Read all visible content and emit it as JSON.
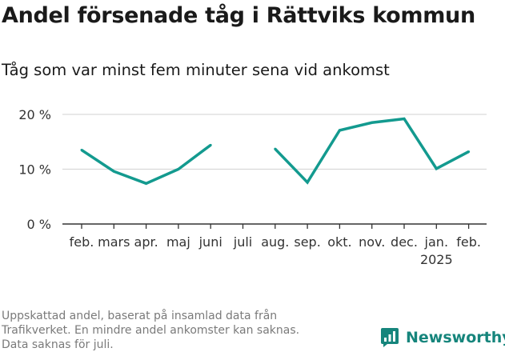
{
  "title": "Andel försenade tåg i Rättviks kommun",
  "subtitle": "Tåg som var minst fem minuter sena vid ankomst",
  "footer": "Uppskattad andel, baserat på insamlad data från\nTrafikverket. En mindre andel ankomster kan saknas.\nData saknas för juli.",
  "brand": {
    "name": "Newsworthy",
    "icon": "newsworthy-logo-icon"
  },
  "colors": {
    "line": "#139a8f",
    "grid": "#d9d9d9",
    "axis": "#333333",
    "brand": "#16857c"
  },
  "chart_data": {
    "type": "line",
    "title": "Andel försenade tåg i Rättviks kommun",
    "subtitle": "Tåg som var minst fem minuter sena vid ankomst",
    "xlabel": "",
    "ylabel": "",
    "categories": [
      "feb.",
      "mars",
      "apr.",
      "maj",
      "juni",
      "juli",
      "aug.",
      "sep.",
      "okt.",
      "nov.",
      "dec.",
      "jan.",
      "feb."
    ],
    "year_labels": [
      "",
      "",
      "",
      "",
      "",
      "",
      "",
      "",
      "",
      "",
      "",
      "2025",
      ""
    ],
    "series": [
      {
        "values": [
          13.5,
          9.6,
          7.4,
          10.0,
          14.4,
          null,
          13.7,
          7.6,
          17.1,
          18.5,
          19.2,
          10.1,
          13.2
        ]
      }
    ],
    "ylim": [
      0,
      20
    ],
    "yticks": [
      0,
      10,
      20
    ],
    "ytick_labels": [
      "0 %",
      "10 %",
      "20 %"
    ],
    "grid": true,
    "legend": "none"
  }
}
